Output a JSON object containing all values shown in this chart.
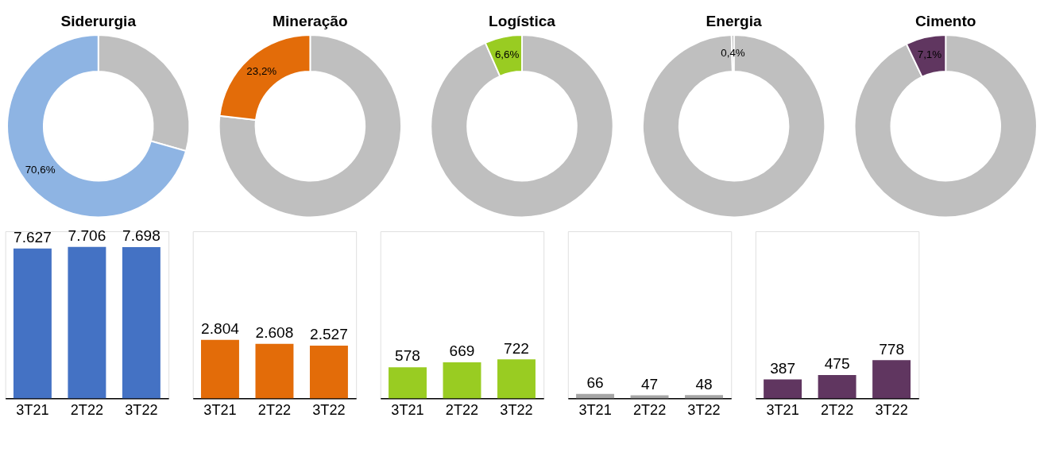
{
  "chart_data": [
    {
      "type": "donut",
      "title": "Siderurgia",
      "categories": [
        null,
        null
      ],
      "values": [
        29.4,
        70.6
      ],
      "colors": [
        "#bfbfbf",
        "#8eb4e3"
      ],
      "value_labels": [
        null,
        "70,6%"
      ]
    },
    {
      "type": "donut",
      "title": "Mineração",
      "categories": [
        null,
        null
      ],
      "values": [
        76.8,
        23.2
      ],
      "colors": [
        "#bfbfbf",
        "#e36c09"
      ],
      "value_labels": [
        null,
        "23,2%"
      ]
    },
    {
      "type": "donut",
      "title": "Logística",
      "categories": [
        null,
        null
      ],
      "values": [
        93.4,
        6.6
      ],
      "colors": [
        "#bfbfbf",
        "#99cc22"
      ],
      "value_labels": [
        null,
        "6,6%"
      ]
    },
    {
      "type": "donut",
      "title": "Energia",
      "categories": [
        null,
        null
      ],
      "values": [
        99.6,
        0.4
      ],
      "colors": [
        "#bfbfbf",
        "#a6a6a6"
      ],
      "value_labels": [
        null,
        "0,4%"
      ]
    },
    {
      "type": "donut",
      "title": "Cimento",
      "categories": [
        null,
        null
      ],
      "values": [
        92.9,
        7.1
      ],
      "colors": [
        "#bfbfbf",
        "#603660"
      ],
      "value_labels": [
        null,
        "7,1%"
      ]
    },
    {
      "type": "bar",
      "categories": [
        "3T21",
        "2T22",
        "3T22"
      ],
      "values": [
        7627,
        7706,
        7698
      ],
      "color": "#4472c4",
      "value_labels": [
        "7.627",
        "7.706",
        "7.698"
      ],
      "ylim": [
        0,
        8500
      ],
      "tick_labels": "x"
    },
    {
      "type": "bar",
      "categories": [
        "3T21",
        "2T22",
        "3T22"
      ],
      "values": [
        2804,
        2608,
        2527
      ],
      "color": "#e36c09",
      "value_labels": [
        "2.804",
        "2.608",
        "2.527"
      ],
      "ylim": [
        0,
        8000
      ],
      "tick_labels": "x"
    },
    {
      "type": "bar",
      "categories": [
        "3T21",
        "2T22",
        "3T22"
      ],
      "values": [
        578,
        669,
        722
      ],
      "color": "#99cc22",
      "value_labels": [
        "578",
        "669",
        "722"
      ],
      "ylim": [
        0,
        3100
      ],
      "tick_labels": "x"
    },
    {
      "type": "bar",
      "categories": [
        "3T21",
        "2T22",
        "3T22"
      ],
      "values": [
        66,
        47,
        48
      ],
      "color": "#a6a6a6",
      "value_labels": [
        "66",
        "47",
        "48"
      ],
      "ylim": [
        0,
        2500
      ],
      "tick_labels": "x"
    },
    {
      "type": "bar",
      "categories": [
        "3T21",
        "2T22",
        "3T22"
      ],
      "values": [
        387,
        475,
        778
      ],
      "color": "#603660",
      "value_labels": [
        "387",
        "475",
        "778"
      ],
      "ylim": [
        0,
        3400
      ],
      "tick_labels": "x"
    }
  ]
}
